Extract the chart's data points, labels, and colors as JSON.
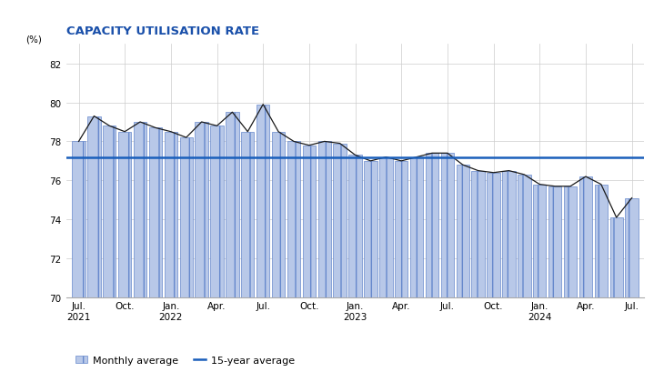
{
  "title": "CAPACITY UTILISATION RATE",
  "ylabel": "(%)",
  "ylim": [
    70,
    83
  ],
  "yticks": [
    70,
    72,
    74,
    76,
    78,
    80,
    82
  ],
  "fifteen_year_avg": 77.2,
  "bar_color": "#b8c8e8",
  "bar_edge_color": "#6688cc",
  "line_color": "#1a1a1a",
  "avg_line_color": "#1a5fbb",
  "title_color": "#1a50aa",
  "title_fontsize": 9.5,
  "axis_fontsize": 7.5,
  "legend_fontsize": 8.0,
  "xtick_positions": [
    0,
    3,
    6,
    9,
    12,
    15,
    18,
    21,
    24,
    27,
    30,
    33,
    36
  ],
  "xtick_labels": [
    "Jul.\n2021",
    "Oct.",
    "Jan.\n2022",
    "Apr.",
    "Jul.",
    "Oct.",
    "Jan.\n2023",
    "Apr.",
    "Jul.",
    "Oct.",
    "Jan.\n2024",
    "Apr.",
    "Jul."
  ],
  "values": [
    78.0,
    79.3,
    78.8,
    78.5,
    79.0,
    78.7,
    78.5,
    78.2,
    79.0,
    78.8,
    79.5,
    78.5,
    79.9,
    78.5,
    78.0,
    77.8,
    78.0,
    77.9,
    77.3,
    77.0,
    77.2,
    77.0,
    77.2,
    77.4,
    77.4,
    76.8,
    76.5,
    76.4,
    76.5,
    76.3,
    75.8,
    75.7,
    75.7,
    76.2,
    75.8,
    74.1,
    75.1
  ]
}
